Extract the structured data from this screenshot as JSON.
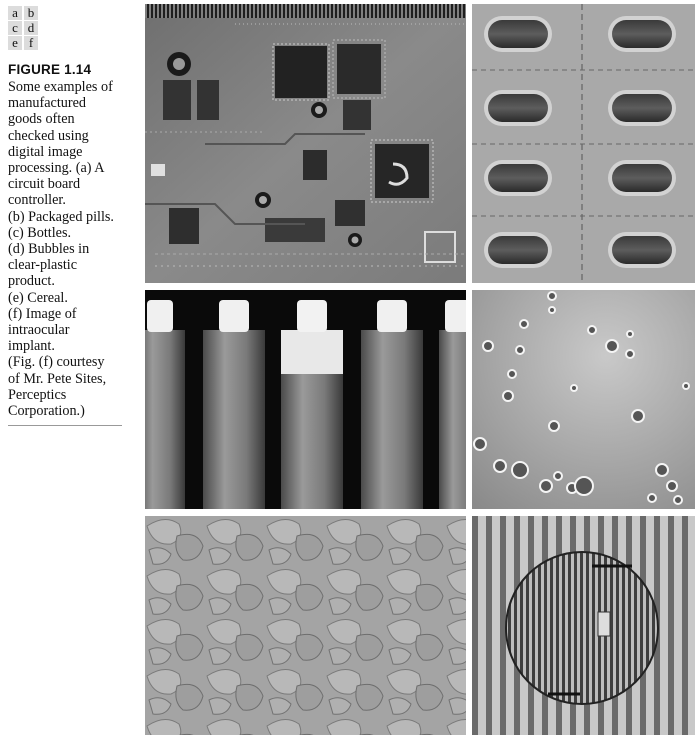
{
  "layout_key": [
    "a",
    "b",
    "c",
    "d",
    "e",
    "f"
  ],
  "figure_label": "FIGURE 1.14",
  "caption_lines": [
    "Some examples of",
    "manufactured",
    "goods often",
    "checked using",
    "digital image",
    "processing. (a) A",
    "circuit board",
    "controller.",
    "(b) Packaged pills.",
    "(c) Bottles.",
    "(d) Bubbles in",
    "clear-plastic",
    "product.",
    "(e) Cereal.",
    "(f) Image of",
    "intraocular",
    "implant.",
    "(Fig. (f) courtesy",
    "of Mr. Pete Sites,",
    "Perceptics",
    "Corporation.)"
  ],
  "panels": {
    "a": "circuit board controller",
    "b": "packaged pills",
    "c": "bottles",
    "d": "bubbles in clear-plastic product",
    "e": "cereal",
    "f": "intraocular implant"
  },
  "colors": {
    "key_cell": "#dcdcdc",
    "rule": "#999999"
  }
}
